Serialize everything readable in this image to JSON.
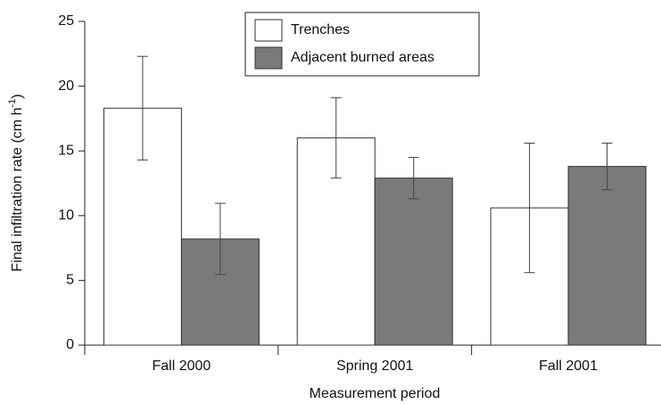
{
  "chart_data": {
    "type": "bar",
    "xlabel": "Measurement period",
    "ylabel": "Final infiltration rate (cm h",
    "ylabel_sup": "-1",
    "ylabel_end": ")",
    "categories": [
      "Fall 2000",
      "Spring 2001",
      "Fall 2001"
    ],
    "series": [
      {
        "name": "Trenches",
        "color": "#ffffff",
        "values": [
          18.3,
          16.0,
          10.6
        ],
        "errors": [
          4.0,
          3.1,
          5.0
        ]
      },
      {
        "name": "Adjacent burned areas",
        "color": "#7a7a7a",
        "values": [
          8.2,
          12.9,
          13.8
        ],
        "errors": [
          2.75,
          1.6,
          1.8
        ]
      }
    ],
    "ylim": [
      0,
      25
    ],
    "yticks": [
      0,
      5,
      10,
      15,
      20,
      25
    ],
    "grid": false,
    "legend": "top"
  }
}
